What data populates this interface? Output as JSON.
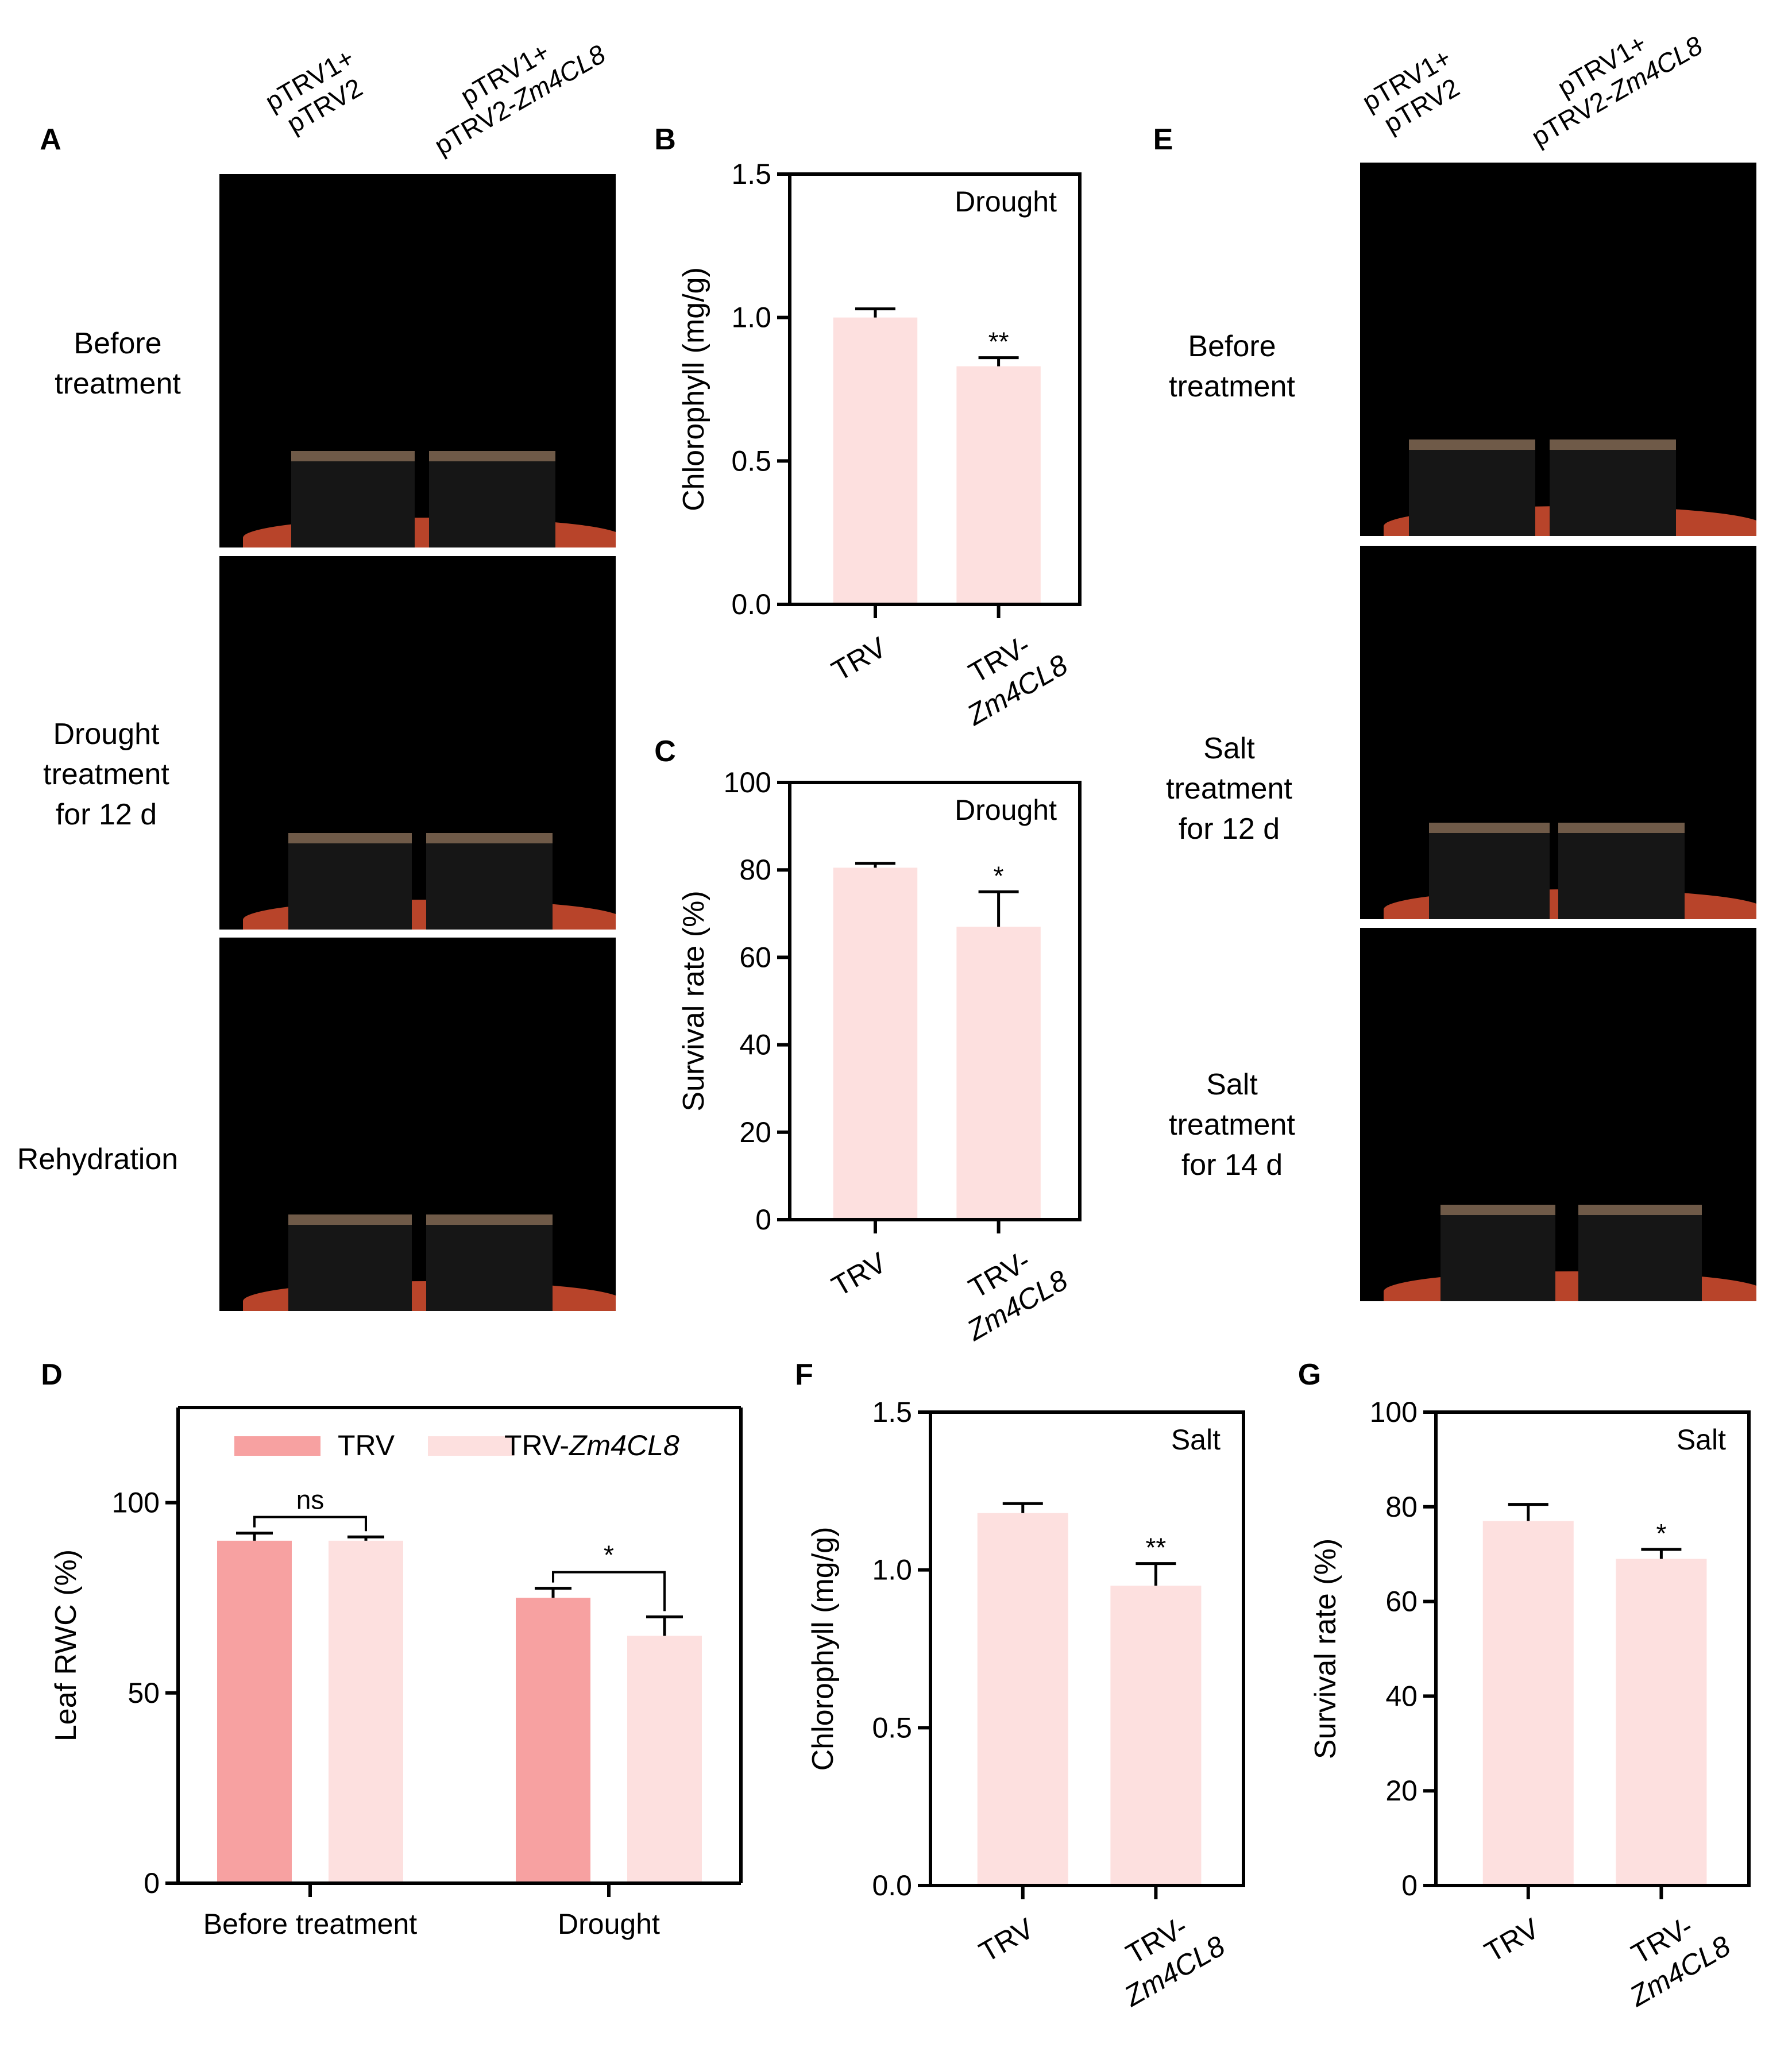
{
  "panels": {
    "A": {
      "letter": "A",
      "col_labels": [
        [
          "pTRV1+",
          "pTRV2"
        ],
        [
          "pTRV1+",
          "pTRV2-Zm4CL8"
        ]
      ],
      "row_labels": [
        [
          "Before",
          "treatment"
        ],
        [
          "Drought",
          "treatment",
          "for 12 d"
        ],
        [
          "Rehydration"
        ]
      ]
    },
    "E": {
      "letter": "E",
      "col_labels": [
        [
          "pTRV1+",
          "pTRV2"
        ],
        [
          "pTRV1+",
          "pTRV2-Zm4CL8"
        ]
      ],
      "row_labels": [
        [
          "Before",
          "treatment"
        ],
        [
          "Salt",
          "treatment",
          "for 12 d"
        ],
        [
          "Salt",
          "treatment",
          "for 14 d"
        ]
      ]
    }
  },
  "colors": {
    "trv": "#f7a1a1",
    "trv_zm4cl8": "#fde0df",
    "axis": "#000000"
  },
  "chart_data": [
    {
      "id": "B",
      "letter": "B",
      "type": "bar",
      "categories": [
        "TRV",
        "TRV-\nZm4CL8"
      ],
      "values": [
        1.0,
        0.83
      ],
      "errors": [
        0.03,
        0.03
      ],
      "significance": [
        "",
        "**"
      ],
      "annotation": "Drought",
      "ylabel": "Chlorophyll (mg/g)",
      "ylim": [
        0.0,
        1.5
      ],
      "yticks": [
        "0.0",
        "0.5",
        "1.0",
        "1.5"
      ]
    },
    {
      "id": "C",
      "letter": "C",
      "type": "bar",
      "categories": [
        "TRV",
        "TRV-\nZm4CL8"
      ],
      "values": [
        80.5,
        67
      ],
      "errors": [
        1,
        8
      ],
      "significance": [
        "",
        "*"
      ],
      "annotation": "Drought",
      "ylabel": "Survival rate (%)",
      "ylim": [
        0,
        100
      ],
      "yticks": [
        "0",
        "20",
        "40",
        "60",
        "80",
        "100"
      ]
    },
    {
      "id": "D",
      "letter": "D",
      "type": "bar",
      "categories": [
        "Before treatment",
        "Drought"
      ],
      "series": [
        {
          "name": "TRV",
          "values": [
            90,
            75
          ],
          "errors": [
            2,
            2.5
          ]
        },
        {
          "name": "TRV-Zm4CL8",
          "values": [
            90,
            65
          ],
          "errors": [
            1,
            5
          ]
        }
      ],
      "significance": [
        "ns",
        "*"
      ],
      "ylabel": "Leaf RWC (%)",
      "ylim": [
        0,
        125
      ],
      "yticks": [
        "0",
        "50",
        "100"
      ],
      "legend": "top"
    },
    {
      "id": "F",
      "letter": "F",
      "type": "bar",
      "categories": [
        "TRV",
        "TRV-\nZm4CL8"
      ],
      "values": [
        1.18,
        0.95
      ],
      "errors": [
        0.03,
        0.07
      ],
      "significance": [
        "",
        "**"
      ],
      "annotation": "Salt",
      "ylabel": "Chlorophyll (mg/g)",
      "ylim": [
        0.0,
        1.5
      ],
      "yticks": [
        "0.0",
        "0.5",
        "1.0",
        "1.5"
      ]
    },
    {
      "id": "G",
      "letter": "G",
      "type": "bar",
      "categories": [
        "TRV",
        "TRV-\nZm4CL8"
      ],
      "values": [
        77,
        69
      ],
      "errors": [
        3.5,
        2
      ],
      "significance": [
        "",
        "*"
      ],
      "annotation": "Salt",
      "ylabel": "Survival rate (%)",
      "ylim": [
        0,
        100
      ],
      "yticks": [
        "0",
        "20",
        "40",
        "60",
        "80",
        "100"
      ]
    }
  ]
}
